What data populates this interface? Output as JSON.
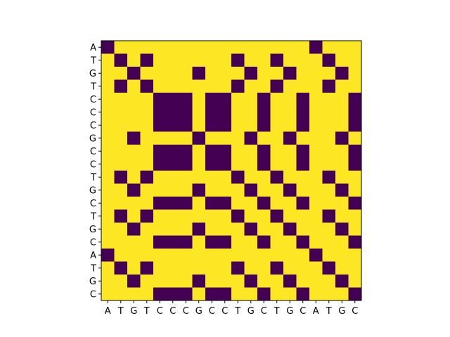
{
  "chart_data": {
    "type": "heatmap",
    "title": "",
    "xlabel": "",
    "ylabel": "",
    "x_sequence": [
      "A",
      "T",
      "G",
      "T",
      "C",
      "C",
      "C",
      "G",
      "C",
      "C",
      "T",
      "G",
      "C",
      "T",
      "G",
      "C",
      "A",
      "T",
      "G",
      "C"
    ],
    "y_sequence": [
      "A",
      "T",
      "G",
      "T",
      "C",
      "C",
      "C",
      "G",
      "C",
      "C",
      "T",
      "G",
      "C",
      "T",
      "G",
      "C",
      "A",
      "T",
      "G",
      "C"
    ],
    "cell_rule": "dark where the x nucleotide equals the y nucleotide, yellow otherwise",
    "values": [
      [
        1,
        0,
        0,
        0,
        0,
        0,
        0,
        0,
        0,
        0,
        0,
        0,
        0,
        0,
        0,
        0,
        1,
        0,
        0,
        0
      ],
      [
        0,
        1,
        0,
        1,
        0,
        0,
        0,
        0,
        0,
        0,
        1,
        0,
        0,
        1,
        0,
        0,
        0,
        1,
        0,
        0
      ],
      [
        0,
        0,
        1,
        0,
        0,
        0,
        0,
        1,
        0,
        0,
        0,
        1,
        0,
        0,
        1,
        0,
        0,
        0,
        1,
        0
      ],
      [
        0,
        1,
        0,
        1,
        0,
        0,
        0,
        0,
        0,
        0,
        1,
        0,
        0,
        1,
        0,
        0,
        0,
        1,
        0,
        0
      ],
      [
        0,
        0,
        0,
        0,
        1,
        1,
        1,
        0,
        1,
        1,
        0,
        0,
        1,
        0,
        0,
        1,
        0,
        0,
        0,
        1
      ],
      [
        0,
        0,
        0,
        0,
        1,
        1,
        1,
        0,
        1,
        1,
        0,
        0,
        1,
        0,
        0,
        1,
        0,
        0,
        0,
        1
      ],
      [
        0,
        0,
        0,
        0,
        1,
        1,
        1,
        0,
        1,
        1,
        0,
        0,
        1,
        0,
        0,
        1,
        0,
        0,
        0,
        1
      ],
      [
        0,
        0,
        1,
        0,
        0,
        0,
        0,
        1,
        0,
        0,
        0,
        1,
        0,
        0,
        1,
        0,
        0,
        0,
        1,
        0
      ],
      [
        0,
        0,
        0,
        0,
        1,
        1,
        1,
        0,
        1,
        1,
        0,
        0,
        1,
        0,
        0,
        1,
        0,
        0,
        0,
        1
      ],
      [
        0,
        0,
        0,
        0,
        1,
        1,
        1,
        0,
        1,
        1,
        0,
        0,
        1,
        0,
        0,
        1,
        0,
        0,
        0,
        1
      ],
      [
        0,
        1,
        0,
        1,
        0,
        0,
        0,
        0,
        0,
        0,
        1,
        0,
        0,
        1,
        0,
        0,
        0,
        1,
        0,
        0
      ],
      [
        0,
        0,
        1,
        0,
        0,
        0,
        0,
        1,
        0,
        0,
        0,
        1,
        0,
        0,
        1,
        0,
        0,
        0,
        1,
        0
      ],
      [
        0,
        0,
        0,
        0,
        1,
        1,
        1,
        0,
        1,
        1,
        0,
        0,
        1,
        0,
        0,
        1,
        0,
        0,
        0,
        1
      ],
      [
        0,
        1,
        0,
        1,
        0,
        0,
        0,
        0,
        0,
        0,
        1,
        0,
        0,
        1,
        0,
        0,
        0,
        1,
        0,
        0
      ],
      [
        0,
        0,
        1,
        0,
        0,
        0,
        0,
        1,
        0,
        0,
        0,
        1,
        0,
        0,
        1,
        0,
        0,
        0,
        1,
        0
      ],
      [
        0,
        0,
        0,
        0,
        1,
        1,
        1,
        0,
        1,
        1,
        0,
        0,
        1,
        0,
        0,
        1,
        0,
        0,
        0,
        1
      ],
      [
        1,
        0,
        0,
        0,
        0,
        0,
        0,
        0,
        0,
        0,
        0,
        0,
        0,
        0,
        0,
        0,
        1,
        0,
        0,
        0
      ],
      [
        0,
        1,
        0,
        1,
        0,
        0,
        0,
        0,
        0,
        0,
        1,
        0,
        0,
        1,
        0,
        0,
        0,
        1,
        0,
        0
      ],
      [
        0,
        0,
        1,
        0,
        0,
        0,
        0,
        1,
        0,
        0,
        0,
        1,
        0,
        0,
        1,
        0,
        0,
        0,
        1,
        0
      ],
      [
        0,
        0,
        0,
        0,
        1,
        1,
        1,
        0,
        1,
        1,
        0,
        0,
        1,
        0,
        0,
        1,
        0,
        0,
        0,
        1
      ]
    ],
    "colors": {
      "match": "#440154",
      "mismatch": "#fde725"
    },
    "grid": false,
    "legend": "none"
  }
}
